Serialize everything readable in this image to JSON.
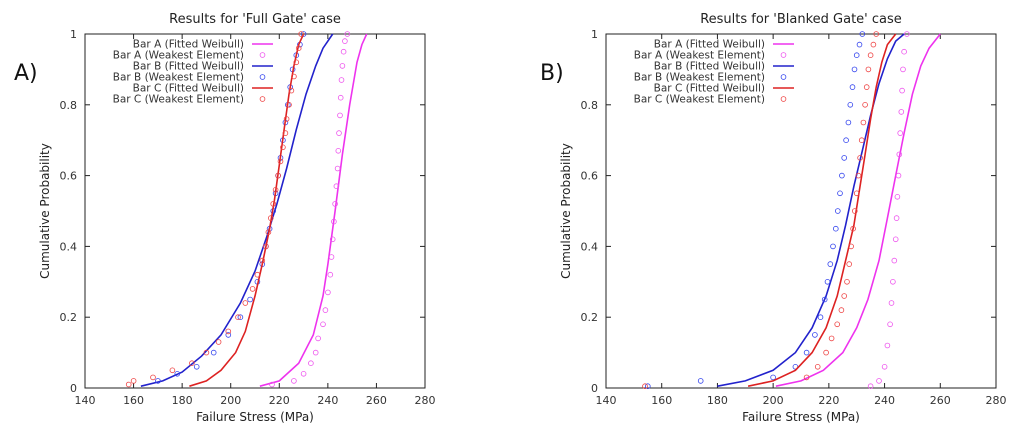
{
  "figure": {
    "panel_letters": [
      "A)",
      "B)"
    ]
  },
  "chart_data": [
    {
      "type": "line",
      "title": "Results for 'Full Gate' case",
      "xlabel": "Failure Stress (MPa)",
      "ylabel": "Cumulative Probability",
      "xlim": [
        140,
        280
      ],
      "ylim": [
        0,
        1
      ],
      "xticks": [
        140,
        160,
        180,
        200,
        220,
        240,
        260,
        280
      ],
      "yticks": [
        0,
        0.2,
        0.4,
        0.6,
        0.8,
        1
      ],
      "grid": false,
      "legend": "top-left",
      "series": [
        {
          "name": "Bar A (Fitted Weibull)",
          "kind": "line",
          "color": "#ee33ee",
          "points": [
            [
              212,
              0.005
            ],
            [
              220,
              0.02
            ],
            [
              228,
              0.07
            ],
            [
              234,
              0.15
            ],
            [
              238,
              0.26
            ],
            [
              240,
              0.35
            ],
            [
              243,
              0.5
            ],
            [
              246,
              0.66
            ],
            [
              249,
              0.8
            ],
            [
              252,
              0.92
            ],
            [
              254,
              0.97
            ],
            [
              256,
              1.0
            ]
          ]
        },
        {
          "name": "Bar A (Weakest Element)",
          "kind": "scatter",
          "color": "#ee55ee",
          "points": [
            [
              217,
              0.01
            ],
            [
              226,
              0.02
            ],
            [
              230,
              0.04
            ],
            [
              233,
              0.07
            ],
            [
              235,
              0.1
            ],
            [
              236,
              0.14
            ],
            [
              238,
              0.18
            ],
            [
              239,
              0.22
            ],
            [
              240,
              0.27
            ],
            [
              241,
              0.32
            ],
            [
              241.5,
              0.37
            ],
            [
              242,
              0.42
            ],
            [
              242.5,
              0.47
            ],
            [
              243,
              0.52
            ],
            [
              243.5,
              0.57
            ],
            [
              244,
              0.62
            ],
            [
              244.3,
              0.67
            ],
            [
              244.6,
              0.72
            ],
            [
              245,
              0.77
            ],
            [
              245.3,
              0.82
            ],
            [
              245.6,
              0.87
            ],
            [
              246,
              0.91
            ],
            [
              246.5,
              0.95
            ],
            [
              247,
              0.98
            ],
            [
              248,
              1.0
            ]
          ]
        },
        {
          "name": "Bar B (Fitted Weibull)",
          "kind": "line",
          "color": "#2222cc",
          "points": [
            [
              163,
              0.005
            ],
            [
              172,
              0.02
            ],
            [
              180,
              0.045
            ],
            [
              188,
              0.09
            ],
            [
              196,
              0.15
            ],
            [
              204,
              0.24
            ],
            [
              210,
              0.33
            ],
            [
              215,
              0.43
            ],
            [
              219,
              0.52
            ],
            [
              223,
              0.62
            ],
            [
              227,
              0.73
            ],
            [
              231,
              0.83
            ],
            [
              235,
              0.91
            ],
            [
              238,
              0.96
            ],
            [
              242,
              1.0
            ]
          ]
        },
        {
          "name": "Bar B (Weakest Element)",
          "kind": "scatter",
          "color": "#3344ee",
          "points": [
            [
              170,
              0.02
            ],
            [
              178,
              0.04
            ],
            [
              186,
              0.06
            ],
            [
              193,
              0.1
            ],
            [
              199,
              0.15
            ],
            [
              204,
              0.2
            ],
            [
              208,
              0.25
            ],
            [
              211,
              0.3
            ],
            [
              213,
              0.35
            ],
            [
              214.5,
              0.4
            ],
            [
              216,
              0.45
            ],
            [
              217.5,
              0.5
            ],
            [
              218.5,
              0.55
            ],
            [
              219.5,
              0.6
            ],
            [
              220.5,
              0.65
            ],
            [
              221.5,
              0.7
            ],
            [
              222.5,
              0.75
            ],
            [
              223.5,
              0.8
            ],
            [
              224.5,
              0.85
            ],
            [
              225.5,
              0.9
            ],
            [
              227,
              0.94
            ],
            [
              228.5,
              0.97
            ],
            [
              230,
              1.0
            ]
          ]
        },
        {
          "name": "Bar C (Fitted Weibull)",
          "kind": "line",
          "color": "#dd2222",
          "points": [
            [
              183,
              0.005
            ],
            [
              190,
              0.02
            ],
            [
              196,
              0.05
            ],
            [
              202,
              0.1
            ],
            [
              206,
              0.16
            ],
            [
              210,
              0.26
            ],
            [
              213,
              0.35
            ],
            [
              216,
              0.45
            ],
            [
              218,
              0.53
            ],
            [
              220,
              0.63
            ],
            [
              222,
              0.73
            ],
            [
              224,
              0.83
            ],
            [
              226,
              0.91
            ],
            [
              228,
              0.97
            ],
            [
              230,
              1.0
            ]
          ]
        },
        {
          "name": "Bar C (Weakest Element)",
          "kind": "scatter",
          "color": "#ee4444",
          "points": [
            [
              158,
              0.01
            ],
            [
              160,
              0.02
            ],
            [
              168,
              0.03
            ],
            [
              176,
              0.05
            ],
            [
              184,
              0.07
            ],
            [
              190,
              0.1
            ],
            [
              195,
              0.13
            ],
            [
              199,
              0.16
            ],
            [
              203,
              0.2
            ],
            [
              206,
              0.24
            ],
            [
              209,
              0.28
            ],
            [
              211,
              0.32
            ],
            [
              213,
              0.36
            ],
            [
              214.5,
              0.4
            ],
            [
              215.5,
              0.44
            ],
            [
              216.5,
              0.48
            ],
            [
              217.5,
              0.52
            ],
            [
              218.5,
              0.56
            ],
            [
              219.5,
              0.6
            ],
            [
              220.5,
              0.64
            ],
            [
              221.5,
              0.68
            ],
            [
              222.5,
              0.72
            ],
            [
              223,
              0.76
            ],
            [
              224,
              0.8
            ],
            [
              225,
              0.84
            ],
            [
              226,
              0.88
            ],
            [
              227,
              0.92
            ],
            [
              228,
              0.96
            ],
            [
              229,
              1.0
            ]
          ]
        }
      ]
    },
    {
      "type": "line",
      "title": "Results for 'Blanked Gate' case",
      "xlabel": "Failure Stress (MPa)",
      "ylabel": "Cumulative Probability",
      "xlim": [
        140,
        280
      ],
      "ylim": [
        0,
        1
      ],
      "xticks": [
        140,
        160,
        180,
        200,
        220,
        240,
        260,
        280
      ],
      "yticks": [
        0,
        0.2,
        0.4,
        0.6,
        0.8,
        1
      ],
      "grid": false,
      "legend": "top-left",
      "series": [
        {
          "name": "Bar A (Fitted Weibull)",
          "kind": "line",
          "color": "#ee33ee",
          "points": [
            [
              201,
              0.005
            ],
            [
              210,
              0.02
            ],
            [
              218,
              0.05
            ],
            [
              225,
              0.1
            ],
            [
              230,
              0.17
            ],
            [
              234,
              0.25
            ],
            [
              238,
              0.36
            ],
            [
              241,
              0.48
            ],
            [
              244,
              0.6
            ],
            [
              247,
              0.72
            ],
            [
              250,
              0.83
            ],
            [
              253,
              0.91
            ],
            [
              256,
              0.96
            ],
            [
              260,
              1.0
            ]
          ]
        },
        {
          "name": "Bar A (Weakest Element)",
          "kind": "scatter",
          "color": "#ee55ee",
          "points": [
            [
              235,
              0.005
            ],
            [
              238,
              0.02
            ],
            [
              240,
              0.06
            ],
            [
              241,
              0.12
            ],
            [
              242,
              0.18
            ],
            [
              242.5,
              0.24
            ],
            [
              243,
              0.3
            ],
            [
              243.5,
              0.36
            ],
            [
              244,
              0.42
            ],
            [
              244.3,
              0.48
            ],
            [
              244.6,
              0.54
            ],
            [
              245,
              0.6
            ],
            [
              245.3,
              0.66
            ],
            [
              245.6,
              0.72
            ],
            [
              246,
              0.78
            ],
            [
              246.3,
              0.84
            ],
            [
              246.6,
              0.9
            ],
            [
              247,
              0.95
            ],
            [
              248,
              1.0
            ]
          ]
        },
        {
          "name": "Bar B (Fitted Weibull)",
          "kind": "line",
          "color": "#2222cc",
          "points": [
            [
              180,
              0.005
            ],
            [
              190,
              0.02
            ],
            [
              200,
              0.05
            ],
            [
              208,
              0.1
            ],
            [
              214,
              0.17
            ],
            [
              219,
              0.26
            ],
            [
              223,
              0.36
            ],
            [
              226,
              0.46
            ],
            [
              229,
              0.57
            ],
            [
              232,
              0.67
            ],
            [
              235,
              0.77
            ],
            [
              238,
              0.86
            ],
            [
              241,
              0.93
            ],
            [
              244,
              0.98
            ],
            [
              247,
              1.0
            ]
          ]
        },
        {
          "name": "Bar B (Weakest Element)",
          "kind": "scatter",
          "color": "#3344ee",
          "points": [
            [
              155,
              0.005
            ],
            [
              174,
              0.02
            ],
            [
              200,
              0.03
            ],
            [
              208,
              0.06
            ],
            [
              212,
              0.1
            ],
            [
              215,
              0.15
            ],
            [
              217,
              0.2
            ],
            [
              218.5,
              0.25
            ],
            [
              219.5,
              0.3
            ],
            [
              220.5,
              0.35
            ],
            [
              221.5,
              0.4
            ],
            [
              222.5,
              0.45
            ],
            [
              223.2,
              0.5
            ],
            [
              224,
              0.55
            ],
            [
              224.7,
              0.6
            ],
            [
              225.5,
              0.65
            ],
            [
              226.2,
              0.7
            ],
            [
              227,
              0.75
            ],
            [
              227.7,
              0.8
            ],
            [
              228.5,
              0.85
            ],
            [
              229.2,
              0.9
            ],
            [
              230,
              0.94
            ],
            [
              231,
              0.97
            ],
            [
              232,
              1.0
            ]
          ]
        },
        {
          "name": "Bar C (Fitted Weibull)",
          "kind": "line",
          "color": "#dd2222",
          "points": [
            [
              191,
              0.005
            ],
            [
              200,
              0.02
            ],
            [
              208,
              0.05
            ],
            [
              214,
              0.1
            ],
            [
              219,
              0.17
            ],
            [
              223,
              0.26
            ],
            [
              226,
              0.36
            ],
            [
              229,
              0.46
            ],
            [
              231,
              0.56
            ],
            [
              233,
              0.66
            ],
            [
              235,
              0.76
            ],
            [
              237,
              0.85
            ],
            [
              239,
              0.92
            ],
            [
              241,
              0.97
            ],
            [
              244,
              1.0
            ]
          ]
        },
        {
          "name": "Bar C (Weakest Element)",
          "kind": "scatter",
          "color": "#ee4444",
          "points": [
            [
              154,
              0.005
            ],
            [
              212,
              0.03
            ],
            [
              216,
              0.06
            ],
            [
              219,
              0.1
            ],
            [
              221,
              0.14
            ],
            [
              223,
              0.18
            ],
            [
              224.5,
              0.22
            ],
            [
              225.5,
              0.26
            ],
            [
              226.5,
              0.3
            ],
            [
              227.3,
              0.35
            ],
            [
              228,
              0.4
            ],
            [
              228.7,
              0.45
            ],
            [
              229.3,
              0.5
            ],
            [
              230,
              0.55
            ],
            [
              230.6,
              0.6
            ],
            [
              231.2,
              0.65
            ],
            [
              231.8,
              0.7
            ],
            [
              232.4,
              0.75
            ],
            [
              233,
              0.8
            ],
            [
              233.6,
              0.85
            ],
            [
              234.2,
              0.9
            ],
            [
              235,
              0.94
            ],
            [
              236,
              0.97
            ],
            [
              237,
              1.0
            ]
          ]
        }
      ]
    }
  ]
}
